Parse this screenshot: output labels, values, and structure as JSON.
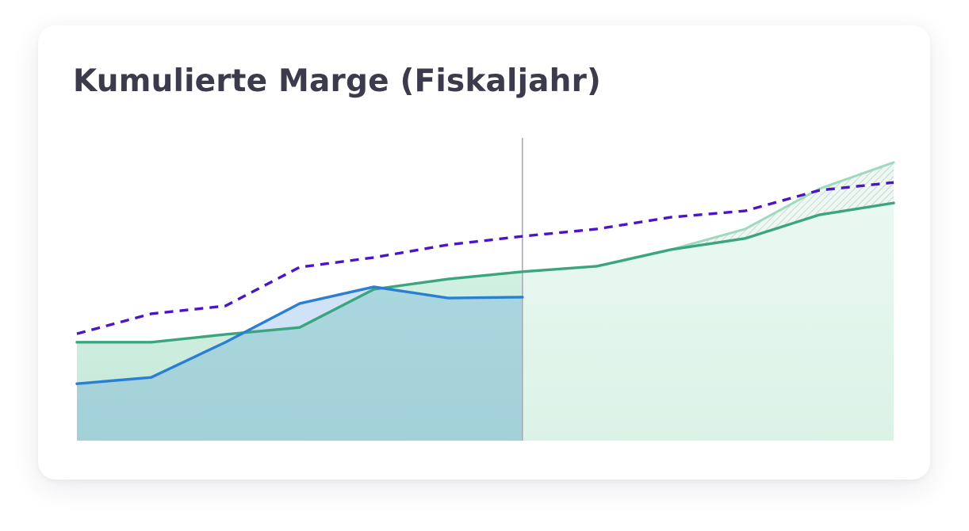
{
  "chart_data": {
    "type": "line",
    "title": "Kumulierte Marge (Fiskaljahr)",
    "categories": [
      null,
      null,
      null,
      null,
      null,
      null,
      null,
      null,
      null,
      null,
      null,
      null
    ],
    "ylim": [
      0,
      100
    ],
    "series": [
      {
        "color": "#3aa57f",
        "area": true,
        "values": [
          32.5,
          32.5,
          35.1,
          37.4,
          50.0,
          53.4,
          55.8,
          57.6,
          63.1,
          66.8,
          74.6,
          78.5
        ]
      },
      {
        "color": "#2a7fd4",
        "area": true,
        "values": [
          18.8,
          20.9,
          32.5,
          45.3,
          50.8,
          47.1,
          47.4,
          null,
          null,
          null,
          null,
          null
        ]
      },
      {
        "color": "#4a14c8",
        "dashed": true,
        "values": [
          35.3,
          41.9,
          44.5,
          57.3,
          60.5,
          64.7,
          67.5,
          69.9,
          73.8,
          75.9,
          82.7,
          85.3
        ]
      },
      {
        "color": "#9fd9bf",
        "hatched": true,
        "values": [
          null,
          null,
          null,
          null,
          null,
          null,
          null,
          null,
          63.1,
          69.9,
          83.2,
          91.9
        ]
      }
    ]
  }
}
